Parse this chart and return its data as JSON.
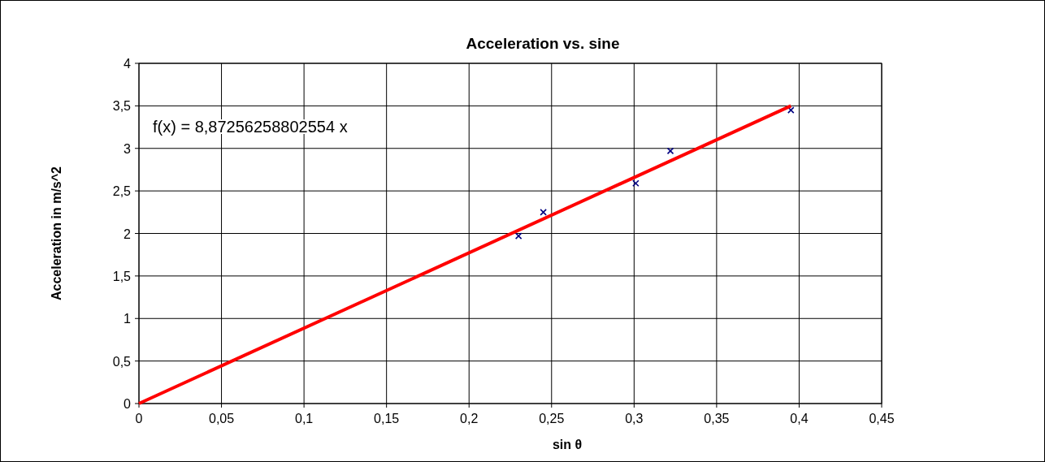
{
  "chart_data": {
    "type": "scatter",
    "title": "Acceleration vs. sine",
    "xlabel": "sin θ",
    "ylabel": "Acceleration in m/s^2",
    "annotations": [
      "f(x) = 8,87256258802554 x"
    ],
    "series": [
      {
        "color": "#000080",
        "marker": "cross",
        "x": [
          0.23,
          0.245,
          0.301,
          0.322,
          0.395
        ],
        "values": [
          1.97,
          2.25,
          2.59,
          2.97,
          3.45
        ]
      },
      {
        "type": "line",
        "color": "#ff0000",
        "marker": "none",
        "x": [
          0,
          0.395
        ],
        "values": [
          0,
          3.5
        ]
      }
    ],
    "xlim": [
      0,
      0.45
    ],
    "ylim": [
      0,
      4
    ],
    "xticks": [
      0,
      {
        "value": 0.05,
        "label": "0,05"
      },
      {
        "value": 0.1,
        "label": "0,1"
      },
      {
        "value": 0.15,
        "label": "0,15"
      },
      {
        "value": 0.2,
        "label": "0,2"
      },
      {
        "value": 0.25,
        "label": "0,25"
      },
      {
        "value": 0.3,
        "label": "0,3"
      },
      {
        "value": 0.35,
        "label": "0,35"
      },
      {
        "value": 0.4,
        "label": "0,4"
      },
      {
        "value": 0.45,
        "label": "0,45"
      }
    ],
    "yticks": [
      0,
      {
        "value": 0.5,
        "label": "0,5"
      },
      1,
      {
        "value": 1.5,
        "label": "1,5"
      },
      2,
      {
        "value": 2.5,
        "label": "2,5"
      },
      3,
      {
        "value": 3.5,
        "label": "3,5"
      },
      4
    ],
    "grid": true
  }
}
